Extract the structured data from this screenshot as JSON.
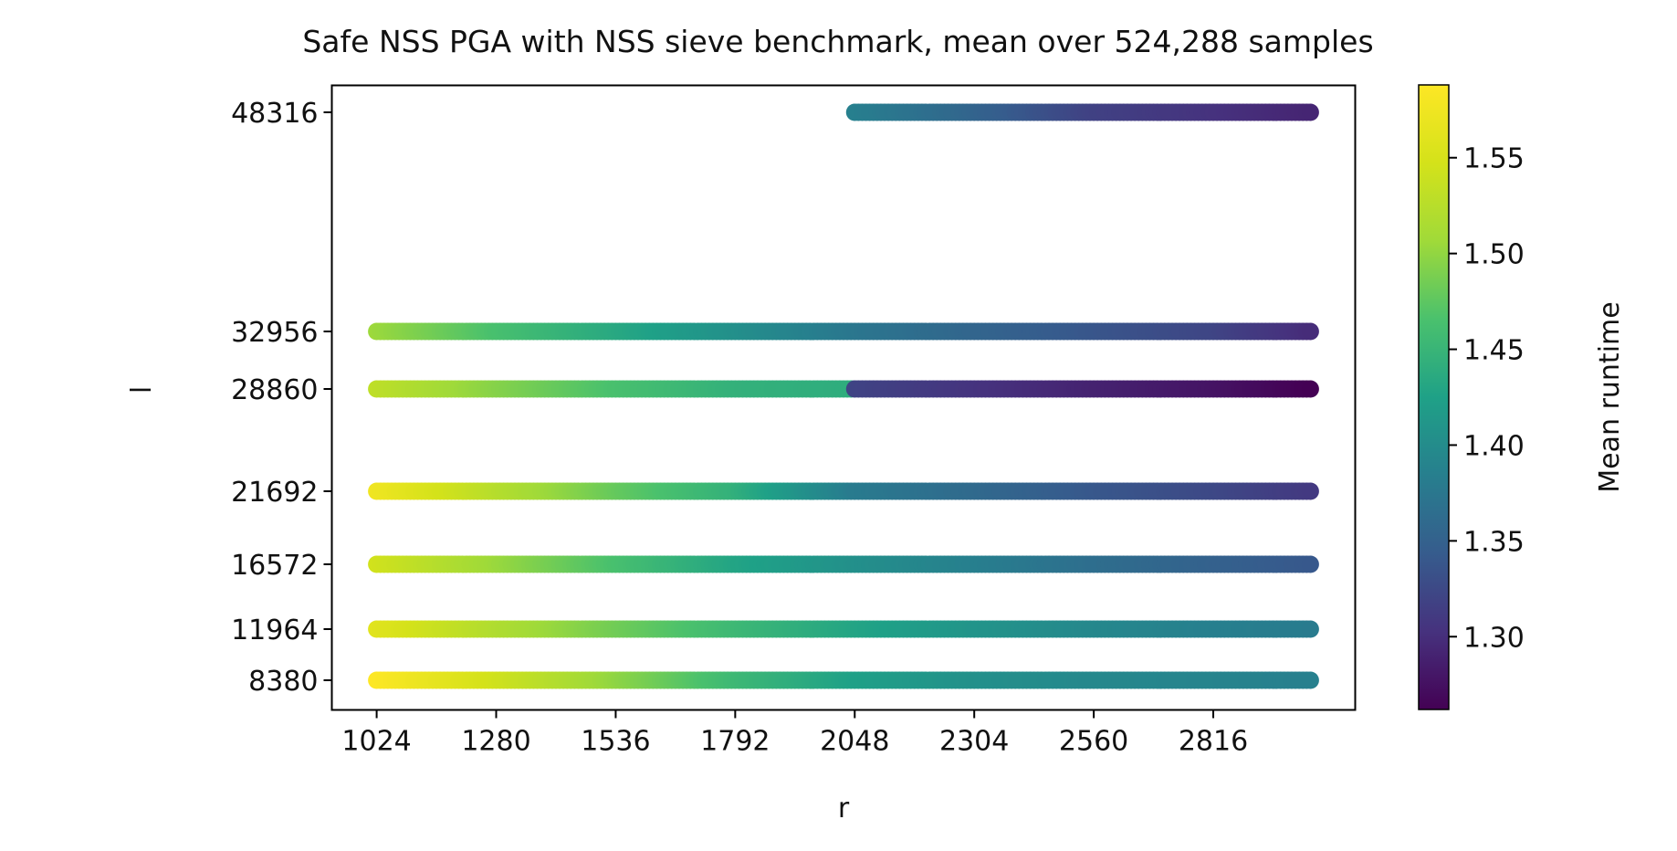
{
  "chart_data": {
    "type": "scatter",
    "title": "Safe NSS PGA with NSS sieve benchmark, mean over 524,288 samples",
    "xlabel": "r",
    "ylabel": "l",
    "x_ticks": [
      1024,
      1280,
      1536,
      1792,
      2048,
      2304,
      2560,
      2816
    ],
    "xlim": [
      928,
      3120
    ],
    "y_ticks": [
      8380,
      11964,
      16572,
      21692,
      28860,
      32956,
      48316
    ],
    "colorbar": {
      "label": "Mean runtime",
      "colormap": "viridis",
      "ticks": [
        "1.30",
        "1.35",
        "1.40",
        "1.45",
        "1.50",
        "1.55"
      ],
      "range": [
        1.262,
        1.588
      ]
    },
    "x_range": {
      "start": 1024,
      "end": 3024,
      "step": 8
    },
    "rows": [
      {
        "l": 48316,
        "x_start": 2048,
        "x_end": 3024,
        "gradient": [
          [
            2048,
            1.385
          ],
          [
            2300,
            1.355
          ],
          [
            2560,
            1.318
          ],
          [
            3024,
            1.292
          ]
        ]
      },
      {
        "l": 32956,
        "x_start": 1024,
        "x_end": 3024,
        "gradient": [
          [
            1024,
            1.505
          ],
          [
            1280,
            1.465
          ],
          [
            1536,
            1.435
          ],
          [
            1792,
            1.405
          ],
          [
            2048,
            1.375
          ],
          [
            2304,
            1.355
          ],
          [
            2560,
            1.338
          ],
          [
            2816,
            1.322
          ],
          [
            3024,
            1.298
          ]
        ]
      },
      {
        "l": 28860,
        "x_start": 1024,
        "x_end": 3024,
        "gradient": [
          [
            1024,
            1.53
          ],
          [
            1280,
            1.495
          ],
          [
            1536,
            1.465
          ],
          [
            1792,
            1.445
          ],
          [
            2040,
            1.44
          ],
          [
            2048,
            1.32
          ],
          [
            2304,
            1.305
          ],
          [
            2560,
            1.29
          ],
          [
            2816,
            1.278
          ],
          [
            3024,
            1.262
          ]
        ]
      },
      {
        "l": 21692,
        "x_start": 1024,
        "x_end": 3024,
        "gradient": [
          [
            1024,
            1.575
          ],
          [
            1280,
            1.525
          ],
          [
            1536,
            1.48
          ],
          [
            1792,
            1.445
          ],
          [
            2048,
            1.38
          ],
          [
            2304,
            1.36
          ],
          [
            2560,
            1.34
          ],
          [
            2816,
            1.325
          ],
          [
            3024,
            1.31
          ]
        ]
      },
      {
        "l": 16572,
        "x_start": 1024,
        "x_end": 3024,
        "gradient": [
          [
            1024,
            1.545
          ],
          [
            1280,
            1.505
          ],
          [
            1536,
            1.465
          ],
          [
            1792,
            1.43
          ],
          [
            2048,
            1.405
          ],
          [
            2304,
            1.385
          ],
          [
            2560,
            1.365
          ],
          [
            2816,
            1.35
          ],
          [
            3024,
            1.34
          ]
        ]
      },
      {
        "l": 11964,
        "x_start": 1024,
        "x_end": 3024,
        "gradient": [
          [
            1024,
            1.56
          ],
          [
            1280,
            1.52
          ],
          [
            1536,
            1.485
          ],
          [
            1792,
            1.455
          ],
          [
            2048,
            1.43
          ],
          [
            2304,
            1.41
          ],
          [
            2560,
            1.395
          ],
          [
            2816,
            1.385
          ],
          [
            3024,
            1.38
          ]
        ]
      },
      {
        "l": 8380,
        "x_start": 1024,
        "x_end": 3024,
        "gradient": [
          [
            1024,
            1.588
          ],
          [
            1280,
            1.545
          ],
          [
            1536,
            1.5
          ],
          [
            1792,
            1.455
          ],
          [
            2048,
            1.425
          ],
          [
            2304,
            1.405
          ],
          [
            2560,
            1.395
          ],
          [
            2816,
            1.39
          ],
          [
            3024,
            1.385
          ]
        ]
      }
    ]
  }
}
